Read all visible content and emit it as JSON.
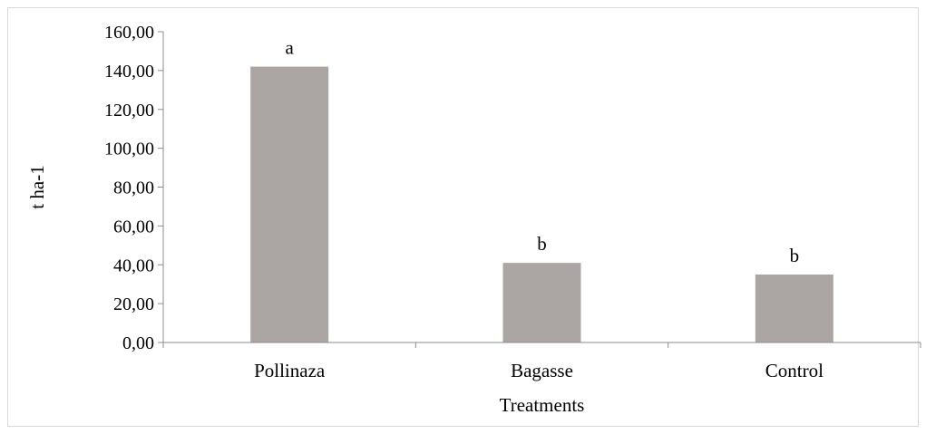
{
  "chart_data": {
    "type": "bar",
    "categories": [
      "Pollinaza",
      "Bagasse",
      "Control"
    ],
    "values": [
      142,
      41,
      35
    ],
    "significance_letters": [
      "a",
      "b",
      "b"
    ],
    "xlabel": "Treatments",
    "ylabel": "t ha-1",
    "ylim": [
      0,
      160
    ],
    "yticks": [
      "0,00",
      "20,00",
      "40,00",
      "60,00",
      "80,00",
      "100,00",
      "120,00",
      "140,00",
      "160,00"
    ],
    "grid": false,
    "legend": "none",
    "bar_color": "#aba6a3"
  }
}
